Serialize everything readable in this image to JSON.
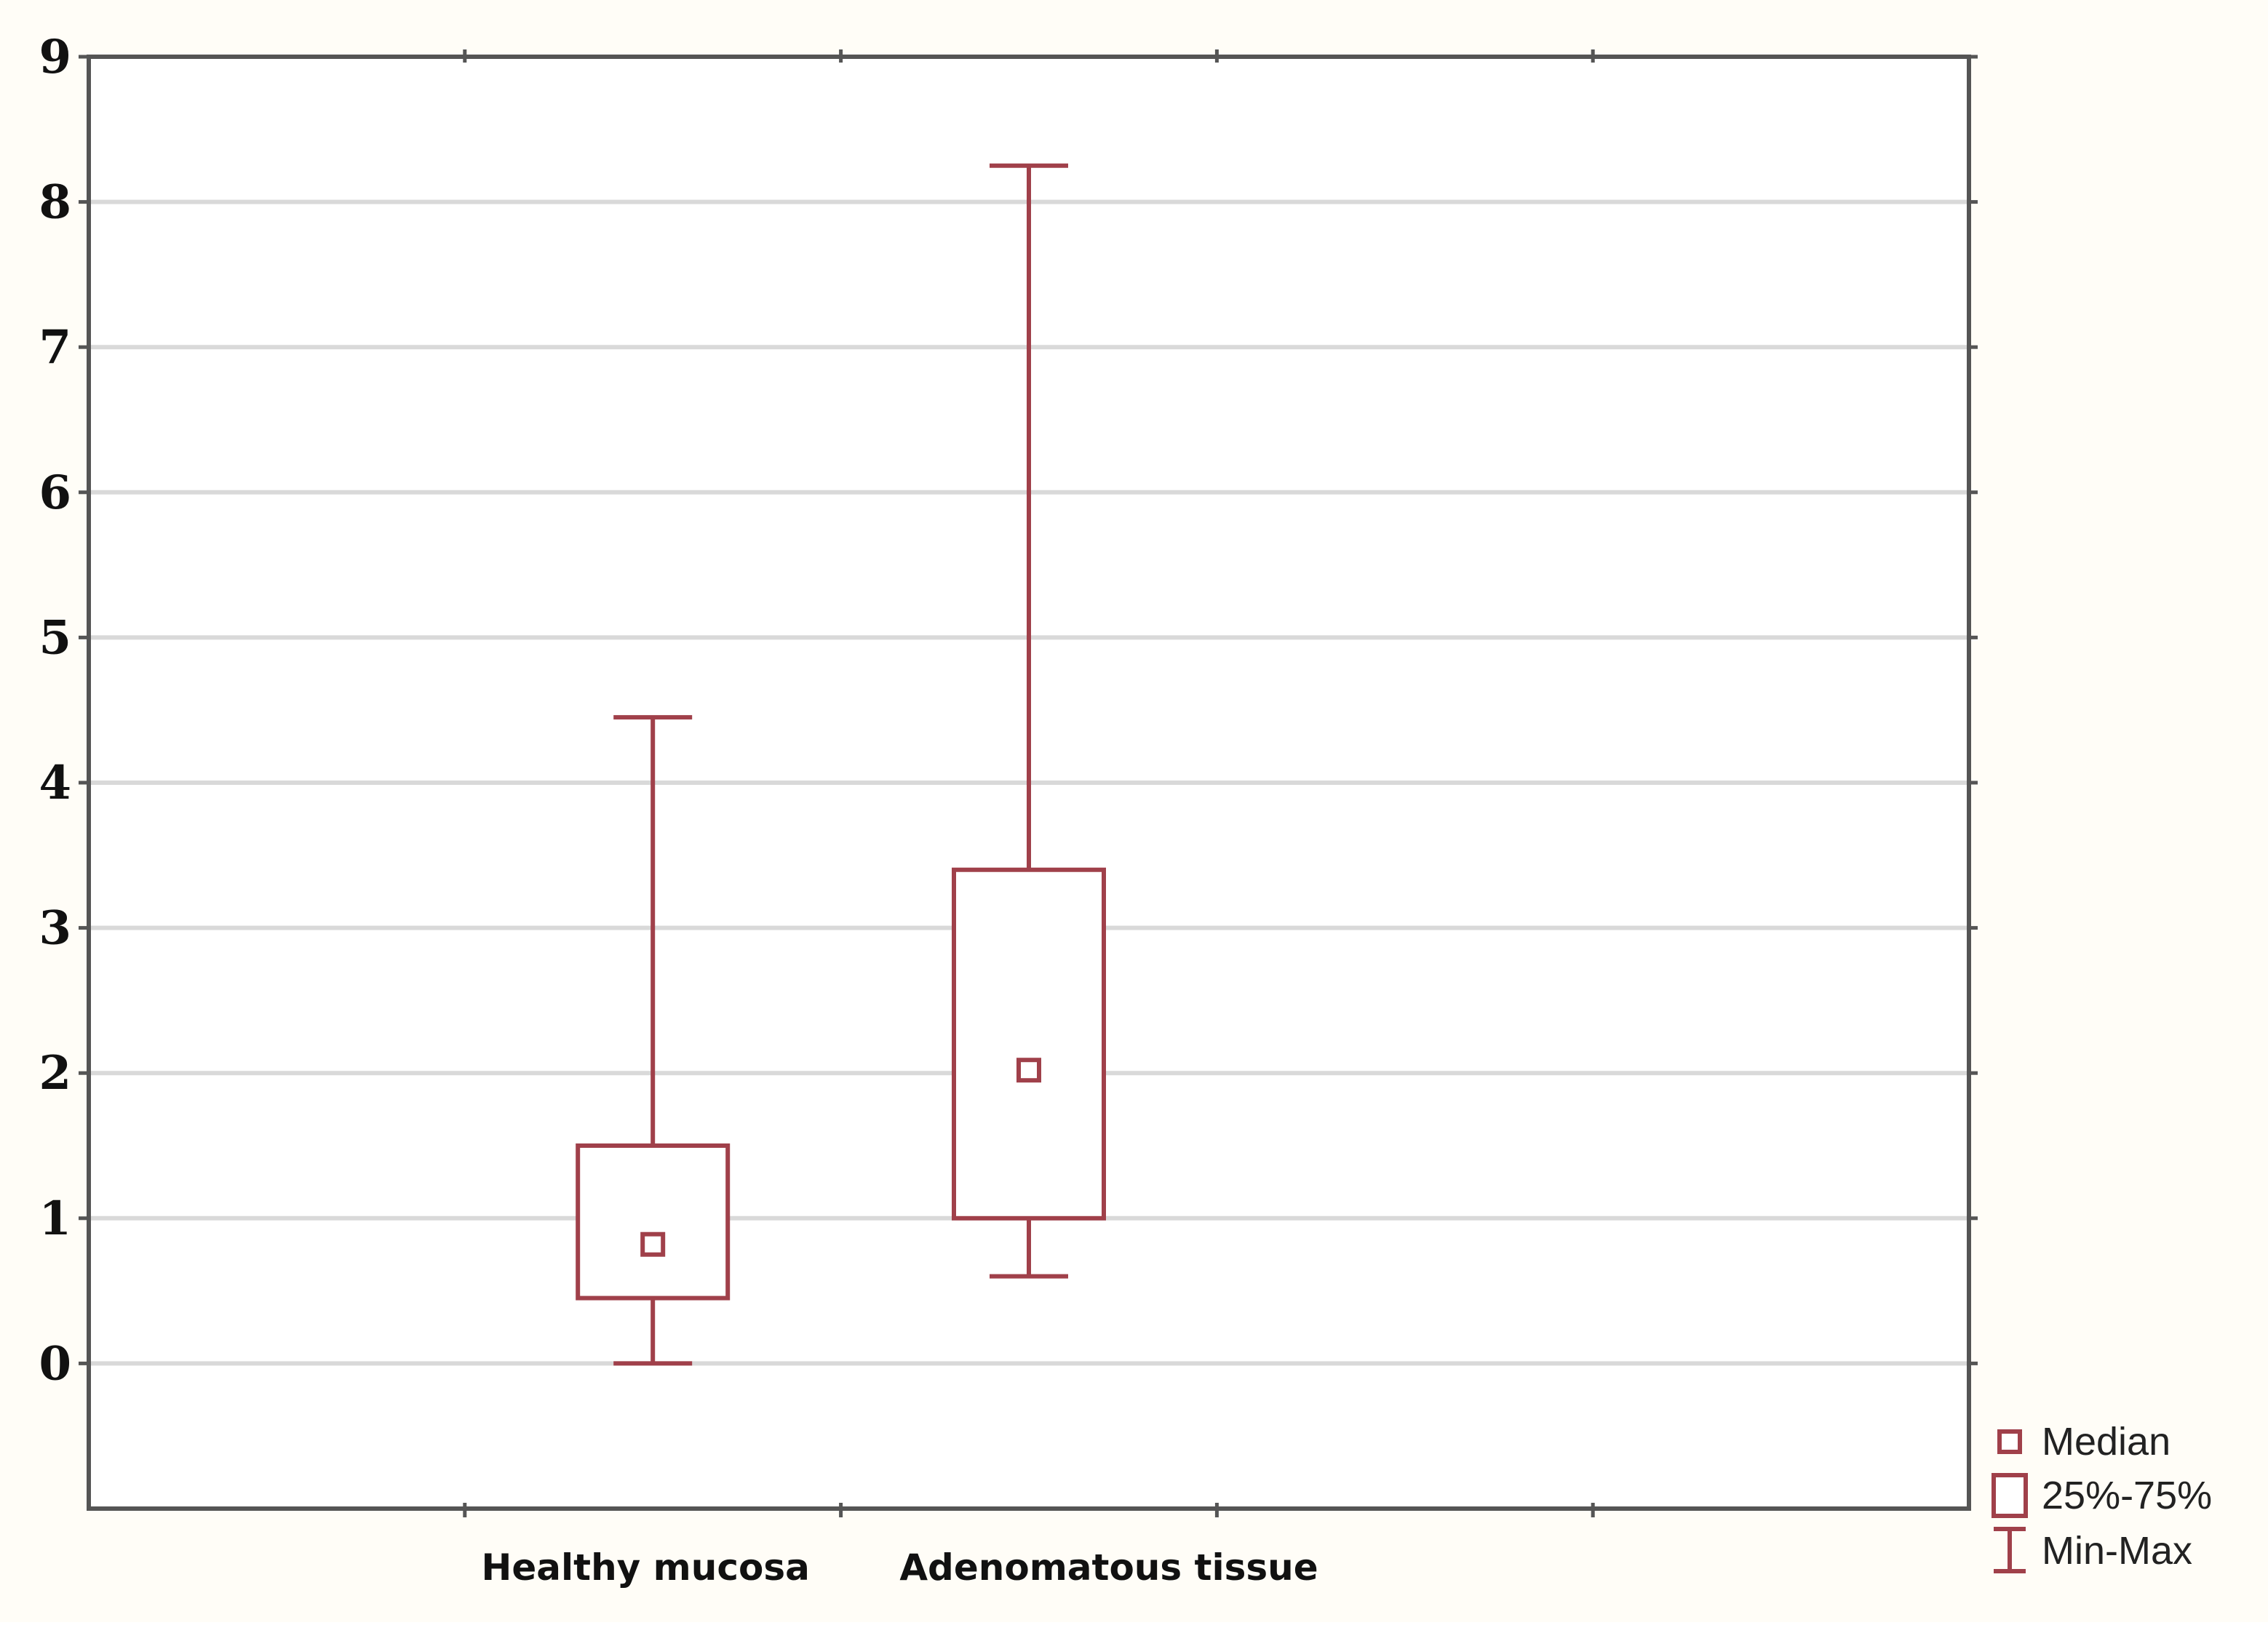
{
  "chart_data": {
    "type": "box",
    "title": "",
    "xlabel": "",
    "ylabel": "",
    "categories": [
      "Healthy mucosa",
      "Adenomatous tissue"
    ],
    "boxes": [
      {
        "category": "Healthy mucosa",
        "min": 0.0,
        "q1": 0.45,
        "median": 0.82,
        "q3": 1.5,
        "max": 4.45
      },
      {
        "category": "Adenomatous tissue",
        "min": 0.6,
        "q1": 1.0,
        "median": 2.02,
        "q3": 3.4,
        "max": 8.25
      }
    ],
    "ylim": [
      -1,
      9
    ],
    "yticks": [
      "0",
      "1",
      "2",
      "3",
      "4",
      "5",
      "6",
      "7",
      "8",
      "9"
    ],
    "grid": true,
    "legend": {
      "position": "bottom-right",
      "entries": [
        {
          "label": "Median",
          "symbol": "small-square"
        },
        {
          "label": "25%-75%",
          "symbol": "box"
        },
        {
          "label": "Min-Max",
          "symbol": "whisker"
        }
      ]
    },
    "colors": {
      "box": "#a0404a",
      "grid": "#d9d9d9",
      "axis": "#555555",
      "background": "#ffffff"
    }
  }
}
